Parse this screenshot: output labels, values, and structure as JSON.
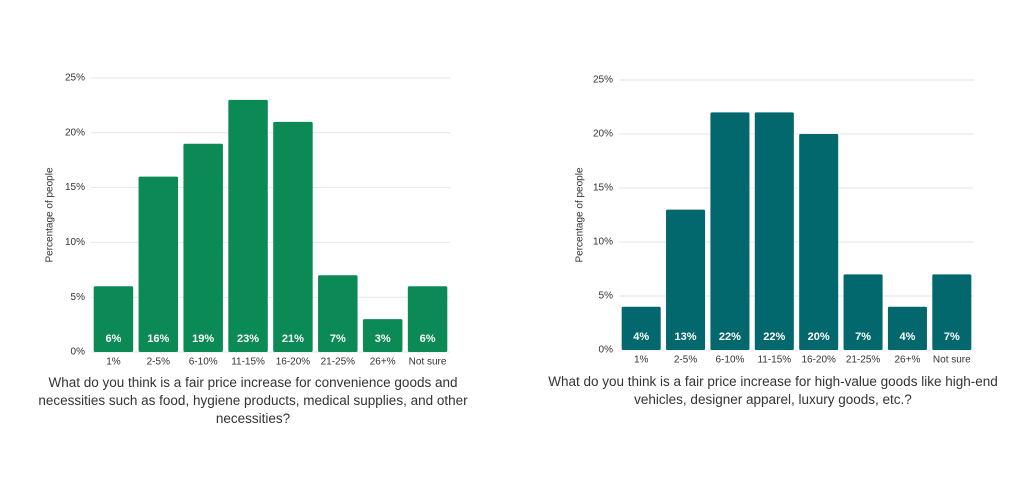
{
  "chart_data": [
    {
      "type": "bar",
      "ylabel": "Percentage of people",
      "xlabel": "What do you think is a fair price increase for convenience goods and necessities such as food, hygiene products, medical supplies, and other necessities?",
      "categories": [
        "1%",
        "2-5%",
        "6-10%",
        "11-15%",
        "16-20%",
        "21-25%",
        "26+%",
        "Not sure"
      ],
      "values": [
        6,
        16,
        19,
        23,
        21,
        7,
        3,
        6
      ],
      "value_labels": [
        "6%",
        "16%",
        "19%",
        "23%",
        "21%",
        "7%",
        "3%",
        "6%"
      ],
      "color": "#0b8a55",
      "ylim": [
        0,
        25
      ],
      "yticks": [
        {
          "value": 0,
          "label": "0%"
        },
        {
          "value": 5,
          "label": "5%"
        },
        {
          "value": 10,
          "label": "10%"
        },
        {
          "value": 15,
          "label": "15%"
        },
        {
          "value": 20,
          "label": "20%"
        },
        {
          "value": 25,
          "label": "25%"
        }
      ],
      "grid": true
    },
    {
      "type": "bar",
      "ylabel": "Percentage of people",
      "xlabel": "What do you think is a fair price increase for high-value goods like high-end vehicles, designer apparel, luxury goods, etc.?",
      "categories": [
        "1%",
        "2-5%",
        "6-10%",
        "11-15%",
        "16-20%",
        "21-25%",
        "26+%",
        "Not sure"
      ],
      "values": [
        4,
        13,
        22,
        22,
        20,
        7,
        4,
        7
      ],
      "value_labels": [
        "4%",
        "13%",
        "22%",
        "22%",
        "20%",
        "7%",
        "4%",
        "7%"
      ],
      "color": "#03686d",
      "ylim": [
        0,
        25
      ],
      "yticks": [
        {
          "value": 0,
          "label": "0%"
        },
        {
          "value": 5,
          "label": "5%"
        },
        {
          "value": 10,
          "label": "10%"
        },
        {
          "value": 15,
          "label": "15%"
        },
        {
          "value": 20,
          "label": "20%"
        },
        {
          "value": 25,
          "label": "25%"
        }
      ],
      "grid": true
    }
  ]
}
